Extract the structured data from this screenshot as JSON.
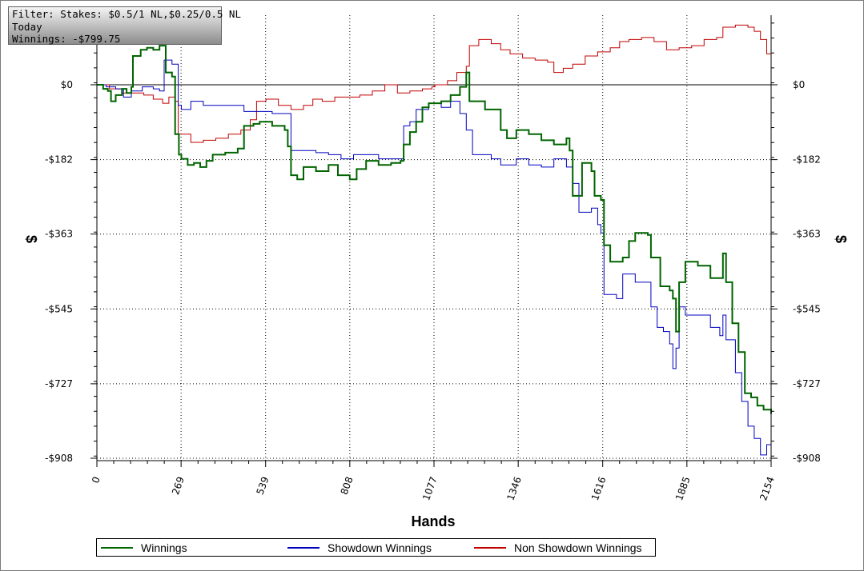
{
  "info": {
    "filter": "Filter: Stakes: $0.5/1 NL,$0.25/0.5 NL",
    "period": "Today",
    "winnings": "Winnings: -$799.75"
  },
  "chart_data": {
    "type": "line",
    "xlabel": "Hands",
    "ylabel": "$",
    "xlim": [
      0,
      2154
    ],
    "ylim": [
      -908,
      165
    ],
    "xticks": [
      "0",
      "269",
      "539",
      "808",
      "1077",
      "1346",
      "1616",
      "1885",
      "2154"
    ],
    "yticks": [
      "$0",
      "-$182",
      "-$363",
      "-$545",
      "-$727",
      "-$908"
    ],
    "ytick_values": [
      0,
      -182,
      -363,
      -545,
      -727,
      -908
    ],
    "grid": true,
    "legend_position": "bottom",
    "series": [
      {
        "name": "Winnings",
        "color": "#006400",
        "points": [
          [
            0,
            0
          ],
          [
            20,
            -10
          ],
          [
            35,
            -15
          ],
          [
            45,
            -40
          ],
          [
            60,
            -25
          ],
          [
            80,
            -10
          ],
          [
            95,
            -20
          ],
          [
            110,
            -5
          ],
          [
            115,
            70
          ],
          [
            140,
            85
          ],
          [
            160,
            90
          ],
          [
            180,
            85
          ],
          [
            200,
            95
          ],
          [
            220,
            30
          ],
          [
            240,
            20
          ],
          [
            250,
            -120
          ],
          [
            262,
            -170
          ],
          [
            270,
            -180
          ],
          [
            290,
            -195
          ],
          [
            310,
            -190
          ],
          [
            330,
            -200
          ],
          [
            350,
            -185
          ],
          [
            370,
            -170
          ],
          [
            410,
            -165
          ],
          [
            450,
            -155
          ],
          [
            470,
            -100
          ],
          [
            500,
            -95
          ],
          [
            520,
            -90
          ],
          [
            560,
            -100
          ],
          [
            600,
            -110
          ],
          [
            610,
            -150
          ],
          [
            620,
            -220
          ],
          [
            640,
            -230
          ],
          [
            660,
            -200
          ],
          [
            700,
            -210
          ],
          [
            740,
            -195
          ],
          [
            770,
            -220
          ],
          [
            808,
            -230
          ],
          [
            830,
            -205
          ],
          [
            860,
            -185
          ],
          [
            900,
            -195
          ],
          [
            940,
            -190
          ],
          [
            970,
            -185
          ],
          [
            980,
            -145
          ],
          [
            1000,
            -115
          ],
          [
            1020,
            -90
          ],
          [
            1040,
            -55
          ],
          [
            1060,
            -45
          ],
          [
            1100,
            -40
          ],
          [
            1130,
            -25
          ],
          [
            1160,
            -5
          ],
          [
            1180,
            30
          ],
          [
            1190,
            -40
          ],
          [
            1240,
            -60
          ],
          [
            1290,
            -110
          ],
          [
            1310,
            -130
          ],
          [
            1340,
            -110
          ],
          [
            1380,
            -120
          ],
          [
            1420,
            -135
          ],
          [
            1460,
            -145
          ],
          [
            1500,
            -130
          ],
          [
            1510,
            -160
          ],
          [
            1520,
            -270
          ],
          [
            1550,
            -190
          ],
          [
            1580,
            -210
          ],
          [
            1590,
            -270
          ],
          [
            1610,
            -280
          ],
          [
            1620,
            -390
          ],
          [
            1640,
            -430
          ],
          [
            1680,
            -420
          ],
          [
            1700,
            -380
          ],
          [
            1720,
            -360
          ],
          [
            1760,
            -365
          ],
          [
            1770,
            -420
          ],
          [
            1800,
            -490
          ],
          [
            1830,
            -500
          ],
          [
            1840,
            -520
          ],
          [
            1850,
            -600
          ],
          [
            1860,
            -480
          ],
          [
            1880,
            -430
          ],
          [
            1920,
            -440
          ],
          [
            1960,
            -470
          ],
          [
            2000,
            -410
          ],
          [
            2010,
            -480
          ],
          [
            2030,
            -580
          ],
          [
            2050,
            -650
          ],
          [
            2070,
            -750
          ],
          [
            2090,
            -760
          ],
          [
            2110,
            -780
          ],
          [
            2130,
            -790
          ],
          [
            2154,
            -800
          ]
        ]
      },
      {
        "name": "Showdown Winnings",
        "color": "#0000c0",
        "points": [
          [
            0,
            0
          ],
          [
            30,
            -5
          ],
          [
            60,
            -10
          ],
          [
            85,
            -30
          ],
          [
            110,
            -15
          ],
          [
            145,
            -5
          ],
          [
            180,
            -10
          ],
          [
            200,
            -15
          ],
          [
            215,
            60
          ],
          [
            240,
            50
          ],
          [
            260,
            -50
          ],
          [
            270,
            -60
          ],
          [
            300,
            -40
          ],
          [
            340,
            -50
          ],
          [
            380,
            -50
          ],
          [
            420,
            -50
          ],
          [
            470,
            -65
          ],
          [
            500,
            -65
          ],
          [
            530,
            -65
          ],
          [
            560,
            -70
          ],
          [
            590,
            -70
          ],
          [
            620,
            -160
          ],
          [
            660,
            -160
          ],
          [
            700,
            -165
          ],
          [
            740,
            -170
          ],
          [
            780,
            -180
          ],
          [
            820,
            -170
          ],
          [
            860,
            -170
          ],
          [
            900,
            -180
          ],
          [
            950,
            -180
          ],
          [
            980,
            -100
          ],
          [
            1000,
            -90
          ],
          [
            1020,
            -60
          ],
          [
            1060,
            -45
          ],
          [
            1100,
            -55
          ],
          [
            1130,
            -40
          ],
          [
            1160,
            -70
          ],
          [
            1180,
            -110
          ],
          [
            1200,
            -170
          ],
          [
            1260,
            -180
          ],
          [
            1290,
            -195
          ],
          [
            1340,
            -180
          ],
          [
            1380,
            -195
          ],
          [
            1420,
            -200
          ],
          [
            1460,
            -180
          ],
          [
            1500,
            -200
          ],
          [
            1520,
            -240
          ],
          [
            1540,
            -310
          ],
          [
            1580,
            -300
          ],
          [
            1600,
            -340
          ],
          [
            1610,
            -360
          ],
          [
            1620,
            -510
          ],
          [
            1660,
            -520
          ],
          [
            1680,
            -460
          ],
          [
            1720,
            -480
          ],
          [
            1760,
            -480
          ],
          [
            1770,
            -540
          ],
          [
            1790,
            -590
          ],
          [
            1810,
            -600
          ],
          [
            1830,
            -630
          ],
          [
            1840,
            -690
          ],
          [
            1850,
            -640
          ],
          [
            1860,
            -540
          ],
          [
            1880,
            -560
          ],
          [
            1920,
            -560
          ],
          [
            1960,
            -590
          ],
          [
            1990,
            -610
          ],
          [
            2000,
            -560
          ],
          [
            2010,
            -620
          ],
          [
            2040,
            -700
          ],
          [
            2060,
            -770
          ],
          [
            2080,
            -830
          ],
          [
            2100,
            -860
          ],
          [
            2120,
            -900
          ],
          [
            2140,
            -875
          ],
          [
            2154,
            -870
          ]
        ]
      },
      {
        "name": "Non Showdown Winnings",
        "color": "#c00000",
        "points": [
          [
            0,
            0
          ],
          [
            40,
            -10
          ],
          [
            80,
            -20
          ],
          [
            120,
            -20
          ],
          [
            150,
            -25
          ],
          [
            180,
            -35
          ],
          [
            210,
            -45
          ],
          [
            230,
            -30
          ],
          [
            250,
            -40
          ],
          [
            260,
            -120
          ],
          [
            300,
            -140
          ],
          [
            340,
            -135
          ],
          [
            380,
            -130
          ],
          [
            420,
            -120
          ],
          [
            460,
            -110
          ],
          [
            490,
            -85
          ],
          [
            510,
            -40
          ],
          [
            540,
            -35
          ],
          [
            580,
            -50
          ],
          [
            620,
            -60
          ],
          [
            660,
            -50
          ],
          [
            690,
            -35
          ],
          [
            720,
            -40
          ],
          [
            760,
            -30
          ],
          [
            800,
            -30
          ],
          [
            840,
            -25
          ],
          [
            880,
            -15
          ],
          [
            920,
            0
          ],
          [
            960,
            -20
          ],
          [
            1000,
            -15
          ],
          [
            1040,
            -10
          ],
          [
            1070,
            -5
          ],
          [
            1080,
            0
          ],
          [
            1120,
            10
          ],
          [
            1150,
            30
          ],
          [
            1180,
            45
          ],
          [
            1190,
            95
          ],
          [
            1220,
            110
          ],
          [
            1260,
            100
          ],
          [
            1290,
            85
          ],
          [
            1320,
            75
          ],
          [
            1360,
            65
          ],
          [
            1400,
            60
          ],
          [
            1440,
            55
          ],
          [
            1460,
            30
          ],
          [
            1490,
            40
          ],
          [
            1520,
            50
          ],
          [
            1560,
            70
          ],
          [
            1600,
            80
          ],
          [
            1640,
            90
          ],
          [
            1670,
            105
          ],
          [
            1700,
            110
          ],
          [
            1740,
            115
          ],
          [
            1780,
            105
          ],
          [
            1820,
            85
          ],
          [
            1860,
            90
          ],
          [
            1900,
            95
          ],
          [
            1940,
            110
          ],
          [
            1980,
            115
          ],
          [
            2000,
            140
          ],
          [
            2040,
            145
          ],
          [
            2080,
            140
          ],
          [
            2100,
            130
          ],
          [
            2120,
            110
          ],
          [
            2140,
            75
          ],
          [
            2154,
            65
          ]
        ]
      }
    ]
  }
}
